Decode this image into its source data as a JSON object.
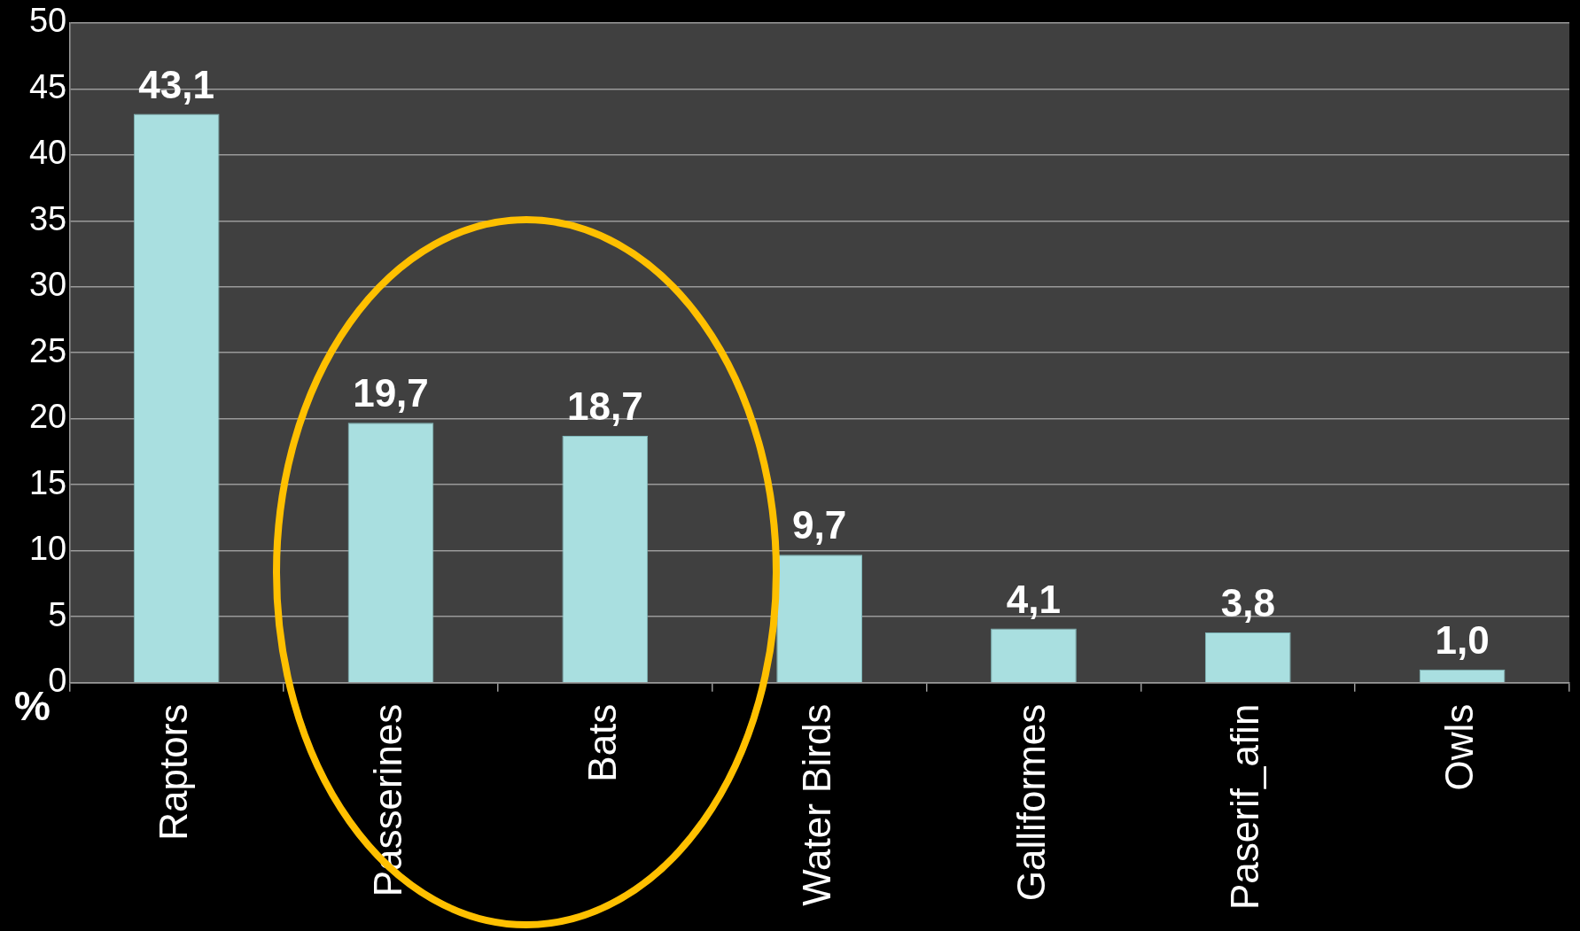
{
  "chart_data": {
    "type": "bar",
    "ylabel": "%",
    "categories": [
      "Raptors",
      "Passerines",
      "Bats",
      "Water Birds",
      "Galliformes",
      "Paserif_afin",
      "Owls"
    ],
    "values": [
      43.1,
      19.7,
      18.7,
      9.7,
      4.1,
      3.8,
      1.0
    ],
    "value_labels": [
      "43,1",
      "19,7",
      "18,7",
      "9,7",
      "4,1",
      "3,8",
      "1,0"
    ],
    "color": "#a9dfe0",
    "ylim": [
      0,
      50
    ],
    "yticks": [
      0,
      5,
      10,
      15,
      20,
      25,
      30,
      35,
      40,
      45,
      50
    ],
    "grid": "y",
    "legend": false
  }
}
